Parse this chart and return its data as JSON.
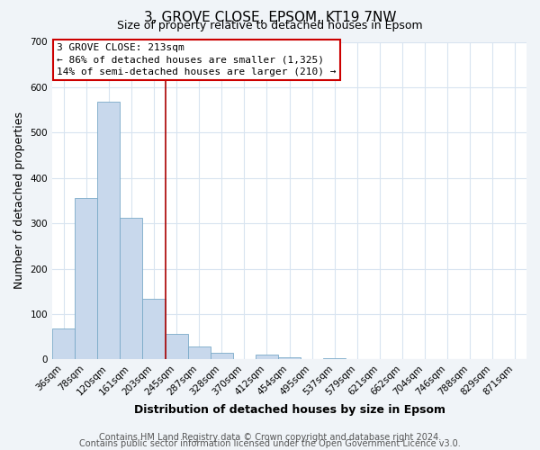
{
  "title": "3, GROVE CLOSE, EPSOM, KT19 7NW",
  "subtitle": "Size of property relative to detached houses in Epsom",
  "xlabel": "Distribution of detached houses by size in Epsom",
  "ylabel": "Number of detached properties",
  "bin_labels": [
    "36sqm",
    "78sqm",
    "120sqm",
    "161sqm",
    "203sqm",
    "245sqm",
    "287sqm",
    "328sqm",
    "370sqm",
    "412sqm",
    "454sqm",
    "495sqm",
    "537sqm",
    "579sqm",
    "621sqm",
    "662sqm",
    "704sqm",
    "746sqm",
    "788sqm",
    "829sqm",
    "871sqm"
  ],
  "bar_values": [
    68,
    355,
    568,
    313,
    133,
    57,
    28,
    14,
    0,
    10,
    5,
    0,
    3,
    0,
    0,
    0,
    0,
    0,
    0,
    0,
    0
  ],
  "bar_color": "#c8d8ec",
  "bar_edge_color": "#7aaac8",
  "vline_x": 4.5,
  "vline_color": "#aa0000",
  "ylim": [
    0,
    700
  ],
  "yticks": [
    0,
    100,
    200,
    300,
    400,
    500,
    600,
    700
  ],
  "annotation_title": "3 GROVE CLOSE: 213sqm",
  "annotation_line1": "← 86% of detached houses are smaller (1,325)",
  "annotation_line2": "14% of semi-detached houses are larger (210) →",
  "annotation_box_facecolor": "#ffffff",
  "annotation_box_edgecolor": "#cc0000",
  "footer_line1": "Contains HM Land Registry data © Crown copyright and database right 2024.",
  "footer_line2": "Contains public sector information licensed under the Open Government Licence v3.0.",
  "fig_background_color": "#f0f4f8",
  "plot_background_color": "#ffffff",
  "grid_color": "#d8e4f0",
  "title_fontsize": 11,
  "subtitle_fontsize": 9,
  "axis_label_fontsize": 9,
  "tick_fontsize": 7.5,
  "annot_fontsize": 8,
  "footer_fontsize": 7
}
